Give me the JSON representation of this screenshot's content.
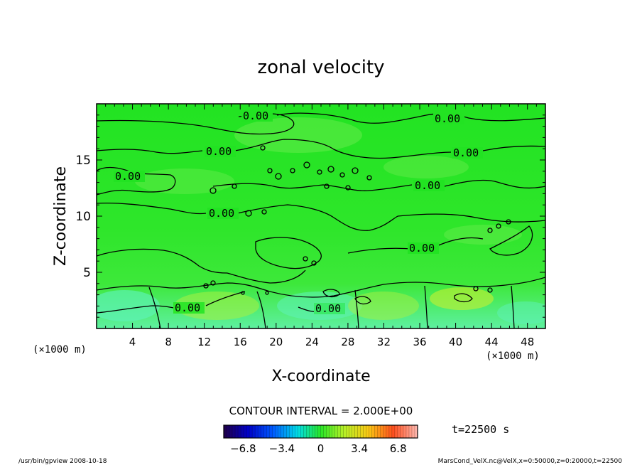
{
  "chart_data": {
    "type": "heatmap",
    "title": "zonal velocity",
    "xlabel": "X-coordinate",
    "ylabel": "Z-coordinate",
    "x_unit": "(×1000 m)",
    "x_unit_right": "(×1000 m)",
    "xlim": [
      0,
      50
    ],
    "ylim": [
      0,
      20
    ],
    "x_ticks": [
      4,
      8,
      12,
      16,
      20,
      24,
      28,
      32,
      36,
      40,
      44,
      48
    ],
    "y_ticks": [
      5,
      10,
      15
    ],
    "contour_interval": "CONTOUR INTERVAL = 2.000E+00",
    "contour_labels": [
      "0.00",
      "0.00",
      "0.00",
      "0.00",
      "0.00",
      "0.00",
      "0.00",
      "0.00",
      "0.00",
      "0.00"
    ],
    "time_label": "t=22500 s",
    "colorbar": {
      "range": [
        -8.5,
        8.5
      ],
      "tick_labels": [
        "−6.8",
        "−3.4",
        "0",
        "3.4",
        "6.8"
      ],
      "tick_values": [
        -6.8,
        -3.4,
        0,
        3.4,
        6.8
      ]
    },
    "grid": false
  },
  "footer": {
    "left": "/usr/bin/gpview   2008-10-18",
    "right": "MarsCond_VelX.nc@VelX,x=0:50000,z=0:20000,t=22500"
  },
  "colors": {
    "field": "#22e322",
    "contour": "#000000"
  }
}
